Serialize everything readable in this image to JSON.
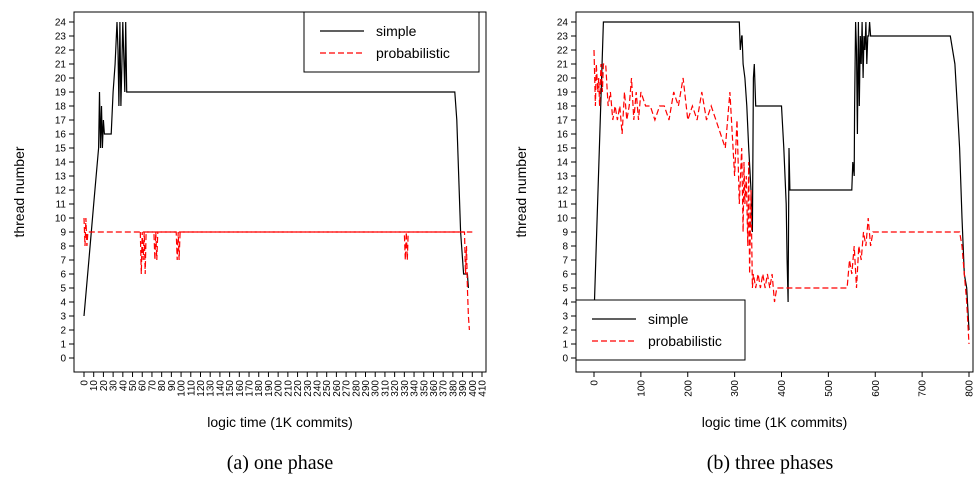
{
  "chart_data": [
    {
      "type": "line",
      "caption": "(a)  one phase",
      "xlabel": "logic time (1K commits)",
      "ylabel": "thread number",
      "xlim": [
        0,
        410
      ],
      "ylim": [
        0,
        24
      ],
      "xticks": [
        0,
        10,
        20,
        30,
        40,
        50,
        60,
        70,
        80,
        90,
        100,
        110,
        120,
        130,
        140,
        150,
        160,
        170,
        180,
        190,
        200,
        210,
        220,
        230,
        240,
        250,
        260,
        270,
        280,
        290,
        300,
        310,
        320,
        330,
        340,
        350,
        360,
        370,
        380,
        390,
        400,
        410
      ],
      "yticks": [
        0,
        1,
        2,
        3,
        4,
        5,
        6,
        7,
        8,
        9,
        10,
        11,
        12,
        13,
        14,
        15,
        16,
        17,
        18,
        19,
        20,
        21,
        22,
        23,
        24
      ],
      "xtick_rotation": "vertical",
      "legend": {
        "position": "top-right",
        "entries": [
          "simple",
          "probabilistic"
        ]
      },
      "series": [
        {
          "name": "simple",
          "style": "solid",
          "color": "#000000",
          "x": [
            0,
            5,
            10,
            15,
            16,
            17,
            18,
            19,
            20,
            21,
            22,
            24,
            28,
            30,
            32,
            34,
            35,
            36,
            37,
            38,
            39,
            40,
            42,
            43,
            44,
            46,
            48,
            50,
            100,
            200,
            300,
            382,
            384,
            386,
            388,
            390,
            391,
            392,
            393,
            394,
            395,
            396
          ],
          "y": [
            3,
            7,
            11,
            15,
            19,
            15,
            18,
            15,
            17,
            16,
            16,
            16,
            16,
            19,
            21,
            24,
            22,
            18,
            24,
            18,
            21,
            24,
            19,
            24,
            19,
            19,
            19,
            19,
            19,
            19,
            19,
            19,
            17,
            13,
            9,
            7,
            6,
            6,
            6,
            6,
            6,
            5
          ]
        },
        {
          "name": "probabilistic",
          "style": "dashed",
          "color": "#ff0000",
          "x": [
            0,
            1,
            2,
            3,
            4,
            5,
            6,
            100,
            200,
            300,
            400,
            58,
            59,
            60,
            61,
            62,
            63,
            64,
            72,
            73,
            74,
            75,
            76,
            95,
            96,
            97,
            98,
            99,
            330,
            331,
            332,
            333,
            334,
            392,
            393,
            394,
            395,
            396,
            397
          ],
          "y": [
            10,
            8,
            10,
            8,
            9,
            9,
            9,
            9,
            9,
            9,
            9,
            9,
            6,
            9,
            7,
            9,
            6,
            9,
            9,
            7,
            9,
            7,
            9,
            9,
            7,
            9,
            7,
            9,
            9,
            7,
            9,
            7,
            9,
            9,
            6,
            8,
            5,
            3,
            2
          ],
          "segments_note": ""
        }
      ]
    },
    {
      "type": "line",
      "caption": "(b)  three phases",
      "xlabel": "logic time (1K commits)",
      "ylabel": "thread number",
      "xlim": [
        0,
        800
      ],
      "ylim": [
        0,
        24
      ],
      "xticks": [
        0,
        100,
        200,
        300,
        400,
        500,
        600,
        700,
        800
      ],
      "yticks": [
        0,
        1,
        2,
        3,
        4,
        5,
        6,
        7,
        8,
        9,
        10,
        11,
        12,
        13,
        14,
        15,
        16,
        17,
        18,
        19,
        20,
        21,
        22,
        23,
        24
      ],
      "xtick_rotation": "vertical",
      "legend": {
        "position": "bottom-left",
        "entries": [
          "simple",
          "probabilistic"
        ]
      },
      "series": [
        {
          "name": "simple",
          "style": "solid",
          "color": "#000000",
          "x": [
            0,
            20,
            300,
            310,
            312,
            315,
            316,
            318,
            322,
            326,
            330,
            335,
            338,
            340,
            342,
            345,
            350,
            360,
            370,
            380,
            390,
            400,
            405,
            410,
            412,
            414,
            416,
            418,
            420,
            430,
            450,
            500,
            550,
            552,
            555,
            556,
            558,
            560,
            562,
            564,
            566,
            568,
            570,
            572,
            574,
            576,
            578,
            580,
            582,
            584,
            586,
            588,
            590,
            592,
            594,
            600,
            650,
            700,
            750,
            760,
            770,
            775,
            780,
            785,
            790,
            795,
            800
          ],
          "y": [
            3,
            24,
            24,
            24,
            22,
            23,
            23,
            21,
            20,
            18,
            15,
            12,
            9,
            20,
            21,
            18,
            18,
            18,
            18,
            18,
            18,
            18,
            15,
            11,
            7,
            4,
            15,
            12,
            12,
            12,
            12,
            12,
            12,
            14,
            13,
            18,
            24,
            22,
            16,
            24,
            18,
            23,
            21,
            24,
            20,
            23,
            22,
            24,
            21,
            23,
            23,
            24,
            23,
            23,
            23,
            23,
            23,
            23,
            23,
            23,
            21,
            18,
            15,
            10,
            6,
            5,
            2
          ]
        },
        {
          "name": "probabilistic",
          "style": "dashed",
          "color": "#ff0000",
          "x": [
            0,
            3,
            5,
            8,
            10,
            12,
            15,
            18,
            20,
            25,
            30,
            35,
            40,
            45,
            50,
            55,
            60,
            65,
            70,
            75,
            80,
            85,
            90,
            95,
            100,
            110,
            120,
            130,
            140,
            150,
            160,
            170,
            180,
            190,
            200,
            210,
            220,
            230,
            240,
            250,
            260,
            270,
            280,
            290,
            300,
            305,
            310,
            315,
            318,
            320,
            322,
            325,
            328,
            330,
            332,
            335,
            338,
            340,
            345,
            350,
            355,
            360,
            365,
            370,
            375,
            380,
            385,
            390,
            400,
            450,
            500,
            540,
            545,
            550,
            555,
            560,
            565,
            570,
            575,
            580,
            585,
            590,
            595,
            600,
            650,
            700,
            750,
            760,
            770,
            775,
            780,
            785,
            790,
            795,
            800
          ],
          "y": [
            22,
            18,
            21,
            19,
            20,
            18,
            21,
            19,
            21,
            21,
            18,
            19,
            17,
            18,
            17,
            18,
            16,
            19,
            17,
            18,
            20,
            17,
            19,
            17,
            19,
            18,
            18,
            17,
            18,
            18,
            17,
            19,
            18,
            20,
            17,
            18,
            17,
            19,
            17,
            18,
            17,
            16,
            15,
            19,
            13,
            17,
            11,
            15,
            9,
            14,
            11,
            13,
            8,
            14,
            6,
            12,
            5,
            6,
            5,
            6,
            5,
            6,
            5,
            6,
            5,
            6,
            4,
            5,
            5,
            5,
            5,
            5,
            7,
            6,
            8,
            5,
            8,
            7,
            9,
            8,
            10,
            8,
            9,
            9,
            9,
            9,
            9,
            9,
            9,
            9,
            9,
            8,
            6,
            4,
            1
          ]
        }
      ]
    }
  ]
}
